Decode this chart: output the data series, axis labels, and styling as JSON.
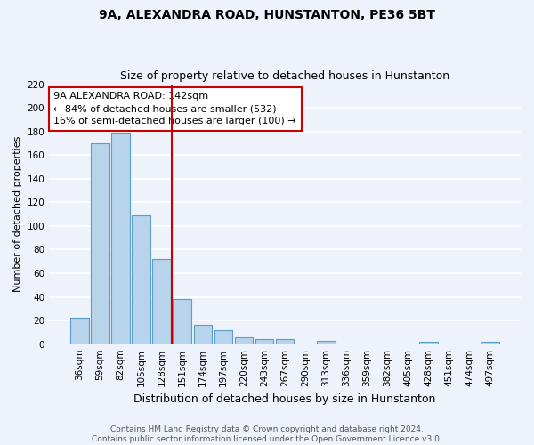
{
  "title": "9A, ALEXANDRA ROAD, HUNSTANTON, PE36 5BT",
  "subtitle": "Size of property relative to detached houses in Hunstanton",
  "xlabel": "Distribution of detached houses by size in Hunstanton",
  "ylabel": "Number of detached properties",
  "bin_labels": [
    "36sqm",
    "59sqm",
    "82sqm",
    "105sqm",
    "128sqm",
    "151sqm",
    "174sqm",
    "197sqm",
    "220sqm",
    "243sqm",
    "267sqm",
    "290sqm",
    "313sqm",
    "336sqm",
    "359sqm",
    "382sqm",
    "405sqm",
    "428sqm",
    "451sqm",
    "474sqm",
    "497sqm"
  ],
  "bar_heights": [
    22,
    170,
    179,
    109,
    72,
    38,
    16,
    12,
    6,
    4,
    4,
    0,
    3,
    0,
    0,
    0,
    0,
    2,
    0,
    0,
    2
  ],
  "bar_color": "#b8d4ec",
  "bar_edge_color": "#5a9dc8",
  "vline_x": 4.5,
  "vline_color": "#cc0000",
  "annotation_text": "9A ALEXANDRA ROAD: 142sqm\n← 84% of detached houses are smaller (532)\n16% of semi-detached houses are larger (100) →",
  "annotation_box_color": "#ffffff",
  "annotation_box_edge": "#cc0000",
  "ylim": [
    0,
    220
  ],
  "yticks": [
    0,
    20,
    40,
    60,
    80,
    100,
    120,
    140,
    160,
    180,
    200,
    220
  ],
  "footer_text": "Contains HM Land Registry data © Crown copyright and database right 2024.\nContains public sector information licensed under the Open Government Licence v3.0.",
  "bg_color": "#eef2fb",
  "grid_color": "#ffffff",
  "title_fontsize": 10,
  "subtitle_fontsize": 9,
  "ylabel_fontsize": 8,
  "xlabel_fontsize": 9,
  "tick_fontsize": 7.5,
  "annotation_fontsize": 8,
  "footer_fontsize": 6.5
}
